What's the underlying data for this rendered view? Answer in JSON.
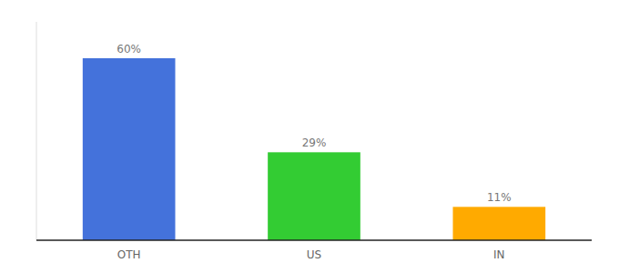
{
  "chart_data": {
    "type": "bar",
    "categories": [
      "OTH",
      "US",
      "IN"
    ],
    "values": [
      60,
      29,
      11
    ],
    "value_labels": [
      "60%",
      "29%",
      "11%"
    ],
    "colors": [
      "#4472db",
      "#33cc33",
      "#ffaa00"
    ],
    "ylim": [
      0,
      72
    ],
    "data_labels": true,
    "tick_labels": "x"
  }
}
